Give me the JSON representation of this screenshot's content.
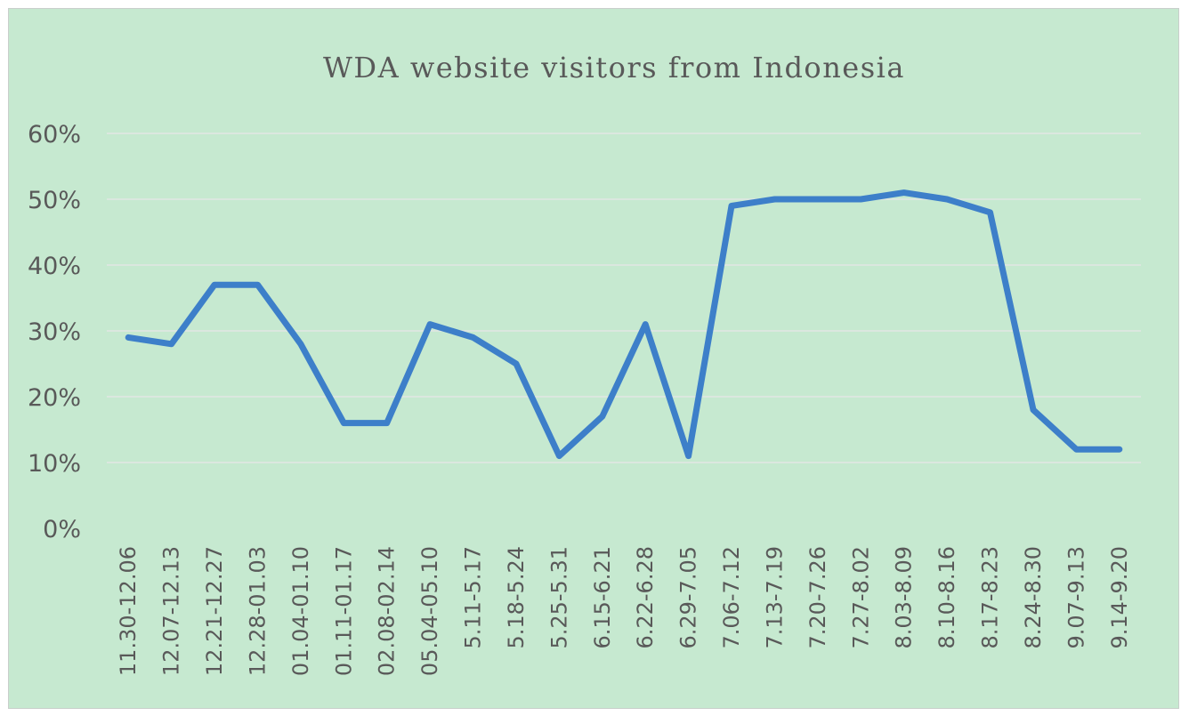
{
  "chart_data": {
    "type": "line",
    "title": "WDA website visitors from Indonesia",
    "xlabel": "",
    "ylabel": "",
    "categories": [
      "11.30-12.06",
      "12.07-12.13",
      "12.21-12.27",
      "12.28-01.03",
      "01.04-01.10",
      "01.11-01.17",
      "02.08-02.14",
      "05.04-05.10",
      "5.11-5.17",
      "5.18-5.24",
      "5.25-5.31",
      "6.15-6.21",
      "6.22-6.28",
      "6.29-7.05",
      "7.06-7.12",
      "7.13-7.19",
      "7.20-7.26",
      "7.27-8.02",
      "8.03-8.09",
      "8.10-8.16",
      "8.17-8.23",
      "8.24-8.30",
      "9.07-9.13",
      "9.14-9.20"
    ],
    "series": [
      {
        "values": [
          29,
          28,
          37,
          37,
          28,
          16,
          16,
          31,
          29,
          25,
          11,
          17,
          31,
          11,
          49,
          50,
          50,
          50,
          51,
          50,
          48,
          18,
          12,
          12
        ]
      }
    ],
    "ylim": [
      0,
      60
    ],
    "yticks": [
      "0%",
      "10%",
      "20%",
      "30%",
      "40%",
      "50%",
      "60%"
    ],
    "grid": true,
    "legend": "none",
    "colors": {
      "background": "#c6e9d0",
      "line": "#3d7fc9",
      "gridline": "#dbe7df",
      "text": "#595959"
    }
  }
}
